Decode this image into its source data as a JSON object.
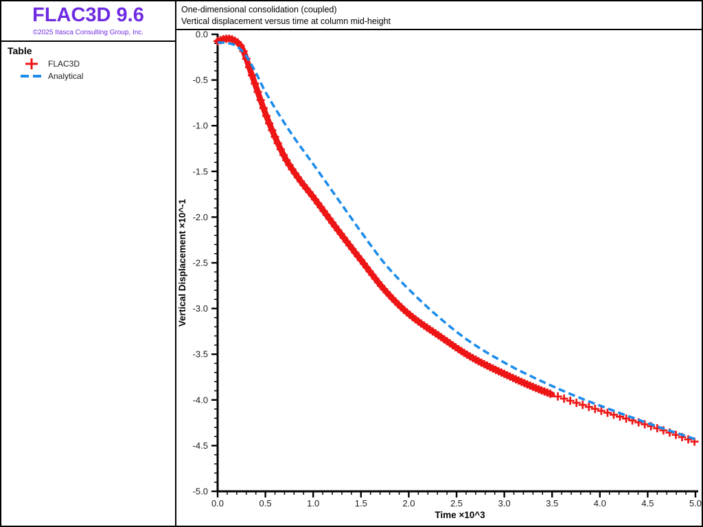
{
  "window": {
    "border_color": "#000000",
    "background": "#ffffff"
  },
  "sidebar": {
    "app_title": "FLAC3D 9.6",
    "copyright": "©2025 Itasca Consulting Group, Inc.",
    "brand_color": "#6e2be2",
    "legend": {
      "heading": "Table",
      "items": [
        {
          "label": "FLAC3D",
          "marker": "plus",
          "color": "#ed1515"
        },
        {
          "label": "Analytical",
          "marker": "dashed-line",
          "color": "#1b8ceb"
        }
      ]
    }
  },
  "chart": {
    "title_line1": "One-dimensional consolidation (coupled)",
    "title_line2": "Vertical displacement versus time at column mid-height"
  },
  "chart_data": {
    "type": "line",
    "title": "One-dimensional consolidation (coupled)",
    "subtitle": "Vertical displacement versus time at column mid-height",
    "xlabel": "Time ×10^3",
    "ylabel": "Vertical Displacement ×10^-1",
    "xlim": [
      0,
      5
    ],
    "ylim": [
      -5,
      0
    ],
    "x_major_step": 0.5,
    "x_minor_step": 0.1,
    "y_major_step": 0.5,
    "y_minor_step": 0.1,
    "grid": false,
    "legend_position": "left-panel",
    "x_ticks": [
      "0.0",
      "0.5",
      "1.0",
      "1.5",
      "2.0",
      "2.5",
      "3.0",
      "3.5",
      "4.0",
      "4.5",
      "5.0"
    ],
    "y_ticks": [
      "0.0",
      "-0.5",
      "-1.0",
      "-1.5",
      "-2.0",
      "-2.5",
      "-3.0",
      "-3.5",
      "-4.0",
      "-4.5",
      "-5.0"
    ],
    "series": [
      {
        "name": "FLAC3D",
        "style": "plus-markers",
        "color": "#ed1515",
        "points": [
          [
            0.0,
            -0.075
          ],
          [
            0.08,
            -0.05
          ],
          [
            0.16,
            -0.06
          ],
          [
            0.25,
            -0.14
          ],
          [
            0.35,
            -0.42
          ],
          [
            0.45,
            -0.72
          ],
          [
            0.55,
            -1.0
          ],
          [
            0.7,
            -1.34
          ],
          [
            0.85,
            -1.58
          ],
          [
            1.0,
            -1.78
          ],
          [
            1.25,
            -2.13
          ],
          [
            1.5,
            -2.47
          ],
          [
            1.75,
            -2.8
          ],
          [
            2.0,
            -3.06
          ],
          [
            2.32,
            -3.3
          ],
          [
            2.65,
            -3.53
          ],
          [
            3.05,
            -3.74
          ],
          [
            3.4,
            -3.9
          ],
          [
            3.75,
            -4.03
          ],
          [
            4.2,
            -4.18
          ],
          [
            4.6,
            -4.31
          ],
          [
            5.0,
            -4.46
          ]
        ]
      },
      {
        "name": "Analytical",
        "style": "dashed",
        "color": "#1b8ceb",
        "points": [
          [
            0.0,
            -0.09
          ],
          [
            0.1,
            -0.095
          ],
          [
            0.2,
            -0.13
          ],
          [
            0.3,
            -0.24
          ],
          [
            0.4,
            -0.42
          ],
          [
            0.5,
            -0.63
          ],
          [
            0.65,
            -0.89
          ],
          [
            0.8,
            -1.13
          ],
          [
            1.0,
            -1.42
          ],
          [
            1.25,
            -1.79
          ],
          [
            1.5,
            -2.16
          ],
          [
            1.75,
            -2.51
          ],
          [
            2.0,
            -2.79
          ],
          [
            2.32,
            -3.1
          ],
          [
            2.65,
            -3.37
          ],
          [
            3.05,
            -3.62
          ],
          [
            3.4,
            -3.8
          ],
          [
            3.75,
            -3.96
          ],
          [
            4.2,
            -4.14
          ],
          [
            4.6,
            -4.29
          ],
          [
            5.0,
            -4.43
          ]
        ]
      }
    ]
  }
}
